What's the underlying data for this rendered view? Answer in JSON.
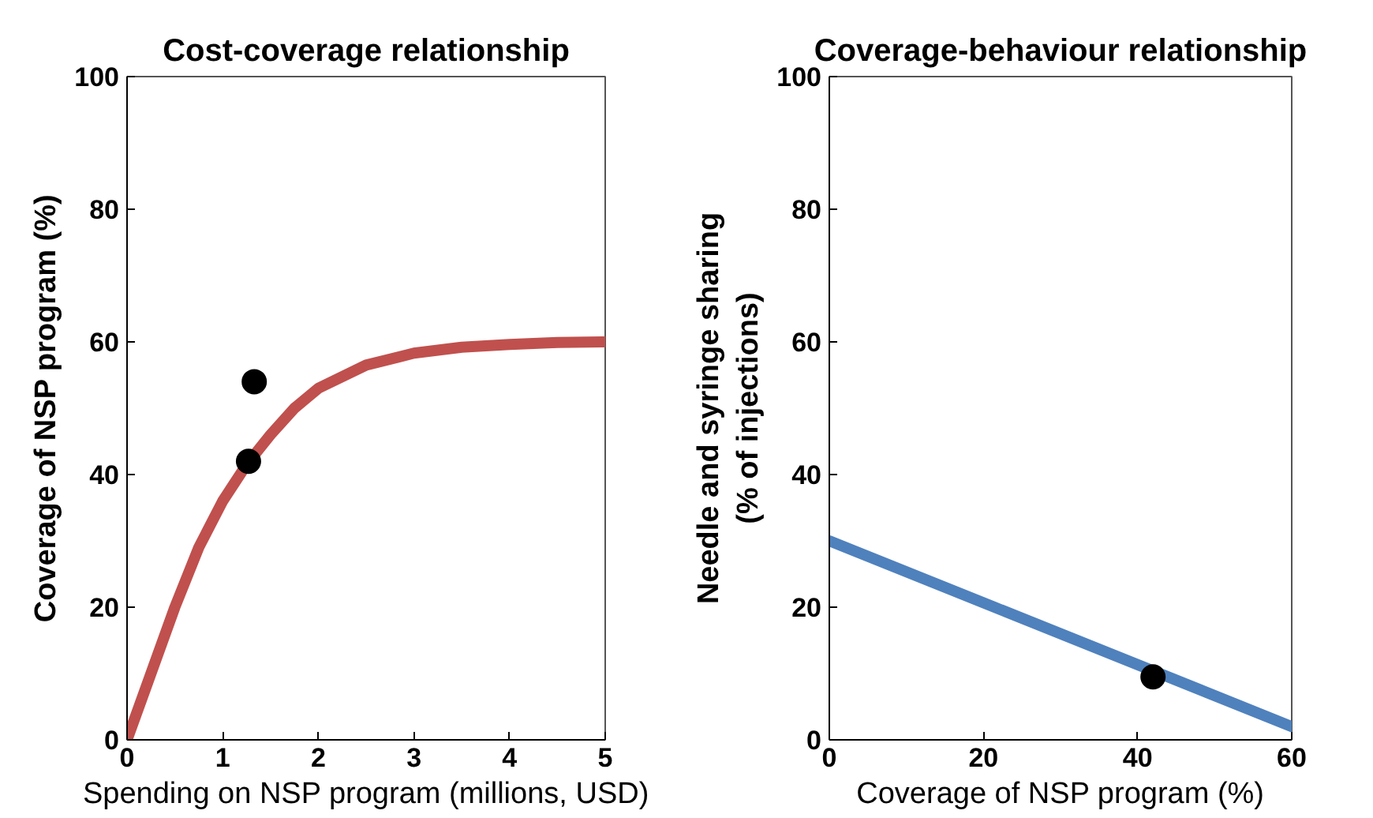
{
  "chart_data": [
    {
      "type": "line",
      "title": "Cost-coverage relationship",
      "xlabel": "Spending on NSP program (millions, USD)",
      "ylabel": "Coverage of NSP program (%)",
      "xlim": [
        0,
        5
      ],
      "ylim": [
        0,
        100
      ],
      "xticks": [
        0,
        1,
        2,
        3,
        4,
        5
      ],
      "yticks": [
        0,
        20,
        40,
        60,
        80,
        100
      ],
      "grid": false,
      "series": [
        {
          "color": "#c0504d",
          "x": [
            0,
            0.25,
            0.5,
            0.75,
            1.0,
            1.25,
            1.5,
            1.75,
            2.0,
            2.5,
            3.0,
            3.5,
            4.0,
            4.5,
            5.0
          ],
          "values": [
            0,
            10,
            20,
            29,
            36,
            41.5,
            46,
            50,
            53,
            56.5,
            58.3,
            59.2,
            59.6,
            59.9,
            60
          ]
        },
        {
          "type": "scatter",
          "color": "#000000",
          "marker": "circle",
          "x": [
            1.27,
            1.33
          ],
          "values": [
            42,
            54
          ]
        }
      ]
    },
    {
      "type": "line",
      "title": "Coverage-behaviour relationship",
      "xlabel": "Coverage of NSP program (%)",
      "ylabel": "Needle and syringe sharing\n(% of injections)",
      "xlim": [
        0,
        60
      ],
      "ylim": [
        0,
        100
      ],
      "xticks": [
        0,
        20,
        40,
        60
      ],
      "yticks": [
        0,
        20,
        40,
        60,
        80,
        100
      ],
      "grid": false,
      "series": [
        {
          "color": "#4f81bd",
          "x": [
            0,
            60
          ],
          "values": [
            30,
            2
          ]
        },
        {
          "type": "scatter",
          "color": "#000000",
          "marker": "circle",
          "x": [
            42
          ],
          "values": [
            9.5
          ]
        }
      ]
    }
  ]
}
